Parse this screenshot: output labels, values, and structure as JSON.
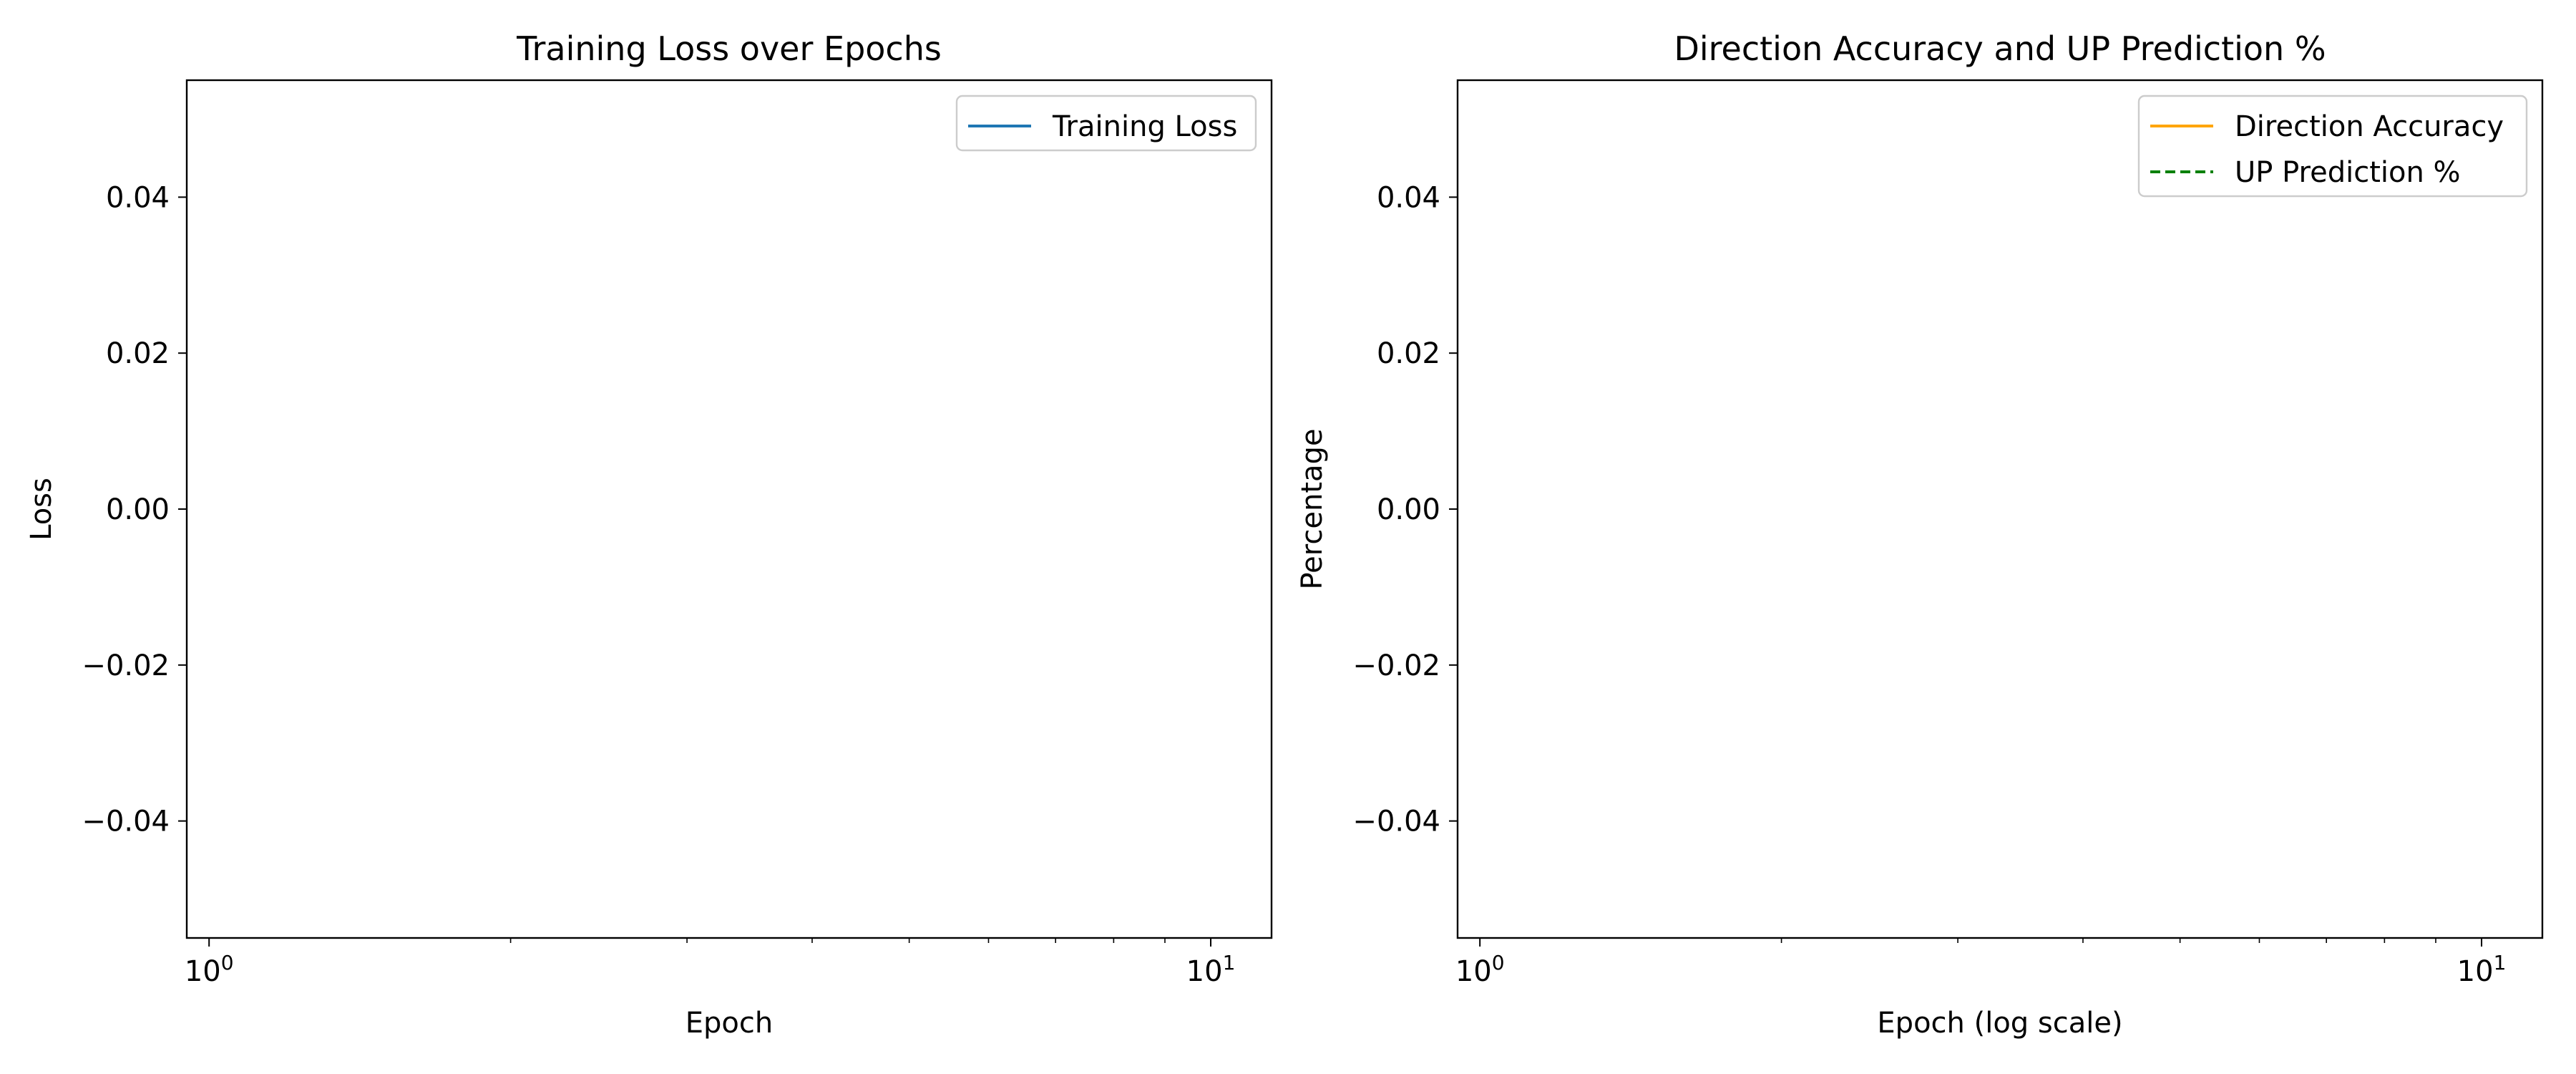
{
  "chart_data": [
    {
      "type": "line",
      "title": "Training Loss over Epochs",
      "xlabel": "Epoch",
      "ylabel": "Loss",
      "xscale": "log",
      "xlim": [
        0.95,
        11.5
      ],
      "ylim": [
        -0.055,
        0.055
      ],
      "x_ticks": [
        1,
        10
      ],
      "y_ticks": [
        -0.04,
        -0.02,
        0.0,
        0.02,
        0.04
      ],
      "grid": false,
      "legend_position": "top-right",
      "series": [
        {
          "name": "Training Loss",
          "values": [],
          "color": "#1f77b4",
          "style": "solid"
        }
      ]
    },
    {
      "type": "line",
      "title": "Direction Accuracy and UP Prediction %",
      "xlabel": "Epoch (log scale)",
      "ylabel": "Percentage",
      "xscale": "log",
      "xlim": [
        0.95,
        11.5
      ],
      "ylim": [
        -0.055,
        0.055
      ],
      "x_ticks": [
        1,
        10
      ],
      "y_ticks": [
        -0.04,
        -0.02,
        0.0,
        0.02,
        0.04
      ],
      "grid": false,
      "legend_position": "top-right",
      "series": [
        {
          "name": "Direction Accuracy",
          "values": [],
          "color": "#ffa500",
          "style": "solid"
        },
        {
          "name": "UP Prediction %",
          "values": [],
          "color": "#008000",
          "style": "dashed"
        }
      ]
    }
  ]
}
